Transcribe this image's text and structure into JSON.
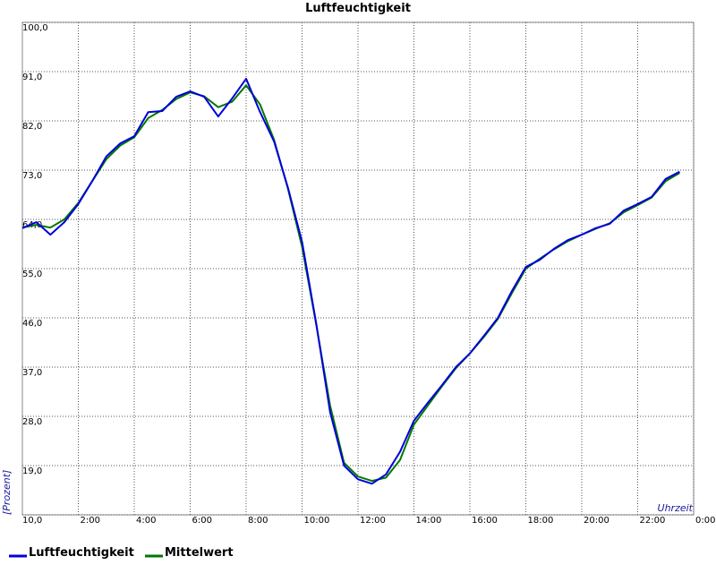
{
  "chart_data": {
    "type": "line",
    "title": "Luftfeuchtigkeit",
    "x_label": "Uhrzeit",
    "y_label": "[Prozent]",
    "x": [
      0,
      0.5,
      1,
      1.5,
      2,
      2.5,
      3,
      3.5,
      4,
      4.5,
      5,
      5.5,
      6,
      6.5,
      7,
      7.5,
      8,
      8.5,
      9,
      9.5,
      10,
      10.5,
      11,
      11.5,
      12,
      12.5,
      13,
      13.5,
      14,
      14.5,
      15,
      15.5,
      16,
      16.5,
      17,
      17.5,
      18,
      18.5,
      19,
      19.5,
      20,
      20.5,
      21,
      21.5,
      22,
      22.5,
      23,
      23.5
    ],
    "series": [
      {
        "name": "Luftfeuchtigkeit",
        "color": "#0000dd",
        "values": [
          62.4,
          63.5,
          61.2,
          63.5,
          66.8,
          71,
          75.5,
          77.9,
          79.2,
          83.6,
          83.8,
          86.4,
          87.4,
          86.4,
          82.8,
          86.1,
          89.7,
          83.6,
          78.2,
          69.7,
          59.9,
          45.2,
          28.8,
          19,
          16.5,
          15.7,
          17.4,
          21.5,
          27.2,
          30.5,
          33.7,
          37,
          39.5,
          42.7,
          46,
          50.9,
          55.3,
          56.6,
          58.6,
          60.2,
          61.2,
          62.4,
          63.2,
          65.6,
          66.8,
          68.1,
          71.4,
          72.7
        ]
      },
      {
        "name": "Mittelwert",
        "color": "#007700",
        "values": [
          62.5,
          63,
          62.5,
          64,
          67,
          71,
          75,
          77.5,
          79,
          82.5,
          84,
          86,
          87.2,
          86.5,
          84.5,
          85.5,
          88.5,
          85,
          78.5,
          69.5,
          59,
          45,
          30,
          19.5,
          17,
          16.2,
          16.8,
          20,
          26.5,
          30,
          33.5,
          36.8,
          39.5,
          42.5,
          45.8,
          50.5,
          55,
          56.8,
          58.5,
          60,
          61.2,
          62.3,
          63.3,
          65.3,
          66.6,
          68,
          71,
          72.5
        ]
      }
    ],
    "xlim": [
      0,
      24
    ],
    "xticks": [
      {
        "value": 2,
        "label": "2:00"
      },
      {
        "value": 4,
        "label": "4:00"
      },
      {
        "value": 6,
        "label": "6:00"
      },
      {
        "value": 8,
        "label": "8:00"
      },
      {
        "value": 10,
        "label": "10:00"
      },
      {
        "value": 12,
        "label": "12:00"
      },
      {
        "value": 14,
        "label": "14:00"
      },
      {
        "value": 16,
        "label": "16:00"
      },
      {
        "value": 18,
        "label": "18:00"
      },
      {
        "value": 20,
        "label": "20:00"
      },
      {
        "value": 22,
        "label": "22:00"
      },
      {
        "value": 24,
        "label": "0:00"
      }
    ],
    "ylim": [
      10,
      100
    ],
    "yticks": [
      {
        "value": 10,
        "label": "10,0"
      },
      {
        "value": 19,
        "label": "19,0"
      },
      {
        "value": 28,
        "label": "28,0"
      },
      {
        "value": 37,
        "label": "37,0"
      },
      {
        "value": 46,
        "label": "46,0"
      },
      {
        "value": 55,
        "label": "55,0"
      },
      {
        "value": 64,
        "label": "64,0"
      },
      {
        "value": 73,
        "label": "73,0"
      },
      {
        "value": 82,
        "label": "82,0"
      },
      {
        "value": 91,
        "label": "91,0"
      },
      {
        "value": 100,
        "label": "100,0"
      }
    ],
    "grid": true
  }
}
